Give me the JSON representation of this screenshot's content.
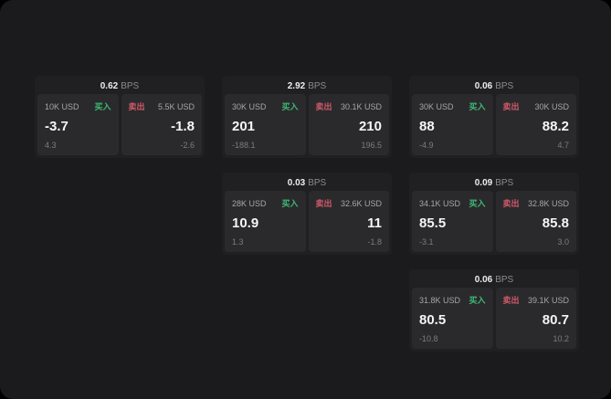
{
  "labels": {
    "bps_unit": "BPS",
    "buy": "买入",
    "sell": "卖出"
  },
  "colors": {
    "buy": "#3dba74",
    "sell": "#d25a6a",
    "surface": "#1b1b1d",
    "card": "#202023",
    "panel": "#2a2a2d"
  },
  "cards": [
    {
      "row": 1,
      "col": 1,
      "bps": "0.62",
      "buy": {
        "size": "10K USD",
        "value": "-3.7",
        "sub": "4.3"
      },
      "sell": {
        "size": "5.5K USD",
        "value": "-1.8",
        "sub": "-2.6"
      }
    },
    {
      "row": 1,
      "col": 2,
      "bps": "2.92",
      "buy": {
        "size": "30K USD",
        "value": "201",
        "sub": "-188.1"
      },
      "sell": {
        "size": "30.1K USD",
        "value": "210",
        "sub": "196.5"
      }
    },
    {
      "row": 1,
      "col": 3,
      "bps": "0.06",
      "buy": {
        "size": "30K USD",
        "value": "88",
        "sub": "-4.9"
      },
      "sell": {
        "size": "30K USD",
        "value": "88.2",
        "sub": "4.7"
      }
    },
    {
      "row": 2,
      "col": 2,
      "bps": "0.03",
      "buy": {
        "size": "28K USD",
        "value": "10.9",
        "sub": "1.3"
      },
      "sell": {
        "size": "32.6K USD",
        "value": "11",
        "sub": "-1.8"
      }
    },
    {
      "row": 2,
      "col": 3,
      "bps": "0.09",
      "buy": {
        "size": "34.1K USD",
        "value": "85.5",
        "sub": "-3.1"
      },
      "sell": {
        "size": "32.8K USD",
        "value": "85.8",
        "sub": "3.0"
      }
    },
    {
      "row": 3,
      "col": 3,
      "bps": "0.06",
      "buy": {
        "size": "31.8K USD",
        "value": "80.5",
        "sub": "-10.8"
      },
      "sell": {
        "size": "39.1K USD",
        "value": "80.7",
        "sub": "10.2"
      }
    }
  ]
}
